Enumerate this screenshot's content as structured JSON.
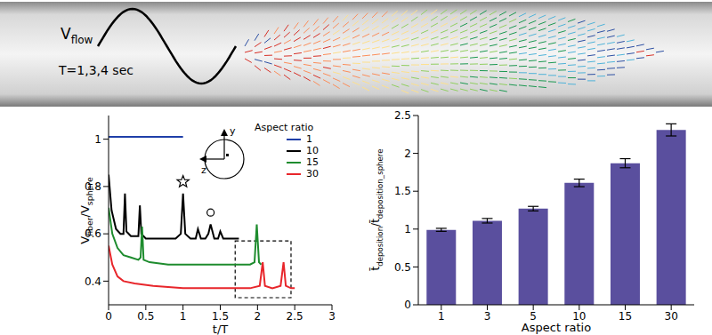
{
  "schematic": {
    "flow_label": "V",
    "flow_subscript": "flow",
    "period_label": "T=1,3,4 sec"
  },
  "chart_data": [
    {
      "type": "line",
      "xlabel": "t/T",
      "ylabel": [
        {
          "text": "V"
        },
        {
          "text": "fiber",
          "sub": true
        },
        {
          "text": "/V"
        },
        {
          "text": "sphere",
          "sub": true
        }
      ],
      "xlim": [
        0,
        3
      ],
      "xticks": [
        0,
        0.5,
        1,
        1.5,
        2,
        2.5,
        3
      ],
      "ylim": [
        0.3,
        1.1
      ],
      "yticks": [
        0.4,
        0.6,
        0.8,
        1
      ],
      "legend": "top-right",
      "legend_title": "Aspect ratio",
      "inset_axes": [
        "y",
        "z"
      ],
      "series": [
        {
          "name": "1",
          "color": "#1f3fa8",
          "x": [
            0,
            1
          ],
          "values": [
            1.01,
            1.01
          ]
        },
        {
          "name": "10",
          "color": "#000000",
          "x": [
            0,
            0.04,
            0.1,
            0.16,
            0.2,
            0.22,
            0.24,
            0.3,
            0.36,
            0.4,
            0.42,
            0.44,
            0.5,
            0.7,
            0.9,
            0.97,
            1.0,
            1.03,
            1.1,
            1.17,
            1.2,
            1.24,
            1.3,
            1.34,
            1.37,
            1.42,
            1.47,
            1.5,
            1.54,
            1.6,
            1.75
          ],
          "values": [
            0.85,
            0.7,
            0.62,
            0.6,
            0.6,
            0.77,
            0.61,
            0.59,
            0.59,
            0.59,
            0.72,
            0.6,
            0.58,
            0.58,
            0.58,
            0.6,
            0.77,
            0.6,
            0.58,
            0.58,
            0.62,
            0.58,
            0.58,
            0.6,
            0.64,
            0.58,
            0.58,
            0.61,
            0.58,
            0.58,
            0.58
          ]
        },
        {
          "name": "15",
          "color": "#1e8c2e",
          "x": [
            0,
            0.05,
            0.12,
            0.2,
            0.3,
            0.4,
            0.43,
            0.45,
            0.47,
            0.55,
            0.8,
            1.2,
            1.6,
            1.9,
            1.96,
            1.99,
            2.02,
            2.05
          ],
          "values": [
            0.71,
            0.6,
            0.54,
            0.51,
            0.5,
            0.49,
            0.5,
            0.63,
            0.49,
            0.48,
            0.47,
            0.47,
            0.47,
            0.47,
            0.48,
            0.64,
            0.48,
            0.47
          ]
        },
        {
          "name": "30",
          "color": "#e8262b",
          "x": [
            0,
            0.05,
            0.12,
            0.2,
            0.35,
            0.6,
            1.0,
            1.5,
            1.9,
            2.03,
            2.07,
            2.1,
            2.2,
            2.31,
            2.35,
            2.38,
            2.45,
            2.5
          ],
          "values": [
            0.55,
            0.47,
            0.42,
            0.4,
            0.39,
            0.38,
            0.37,
            0.37,
            0.37,
            0.38,
            0.48,
            0.38,
            0.37,
            0.38,
            0.48,
            0.38,
            0.37,
            0.37
          ]
        }
      ],
      "annotations": [
        {
          "x": 1.0,
          "y": 0.82,
          "marker": "star"
        },
        {
          "x": 1.37,
          "y": 0.69,
          "marker": "circle"
        }
      ],
      "highlight": {
        "x": [
          1.7,
          2.45
        ],
        "y": [
          0.33,
          0.57
        ]
      }
    },
    {
      "type": "bar",
      "xlabel": "Aspect ratio",
      "ylabel": [
        {
          "text": "t̄"
        },
        {
          "text": "deposition",
          "sub": true
        },
        {
          "text": "/t̄"
        },
        {
          "text": "deposition_sphere",
          "sub": true
        }
      ],
      "categories": [
        "1",
        "3",
        "5",
        "10",
        "15",
        "30"
      ],
      "values": [
        0.99,
        1.11,
        1.27,
        1.61,
        1.87,
        2.31
      ],
      "errors": [
        0.02,
        0.03,
        0.03,
        0.05,
        0.06,
        0.08
      ],
      "color": "#5a4f9e",
      "ylim": [
        0,
        2.5
      ],
      "yticks": [
        0,
        0.5,
        1,
        1.5,
        2,
        2.5
      ]
    }
  ]
}
